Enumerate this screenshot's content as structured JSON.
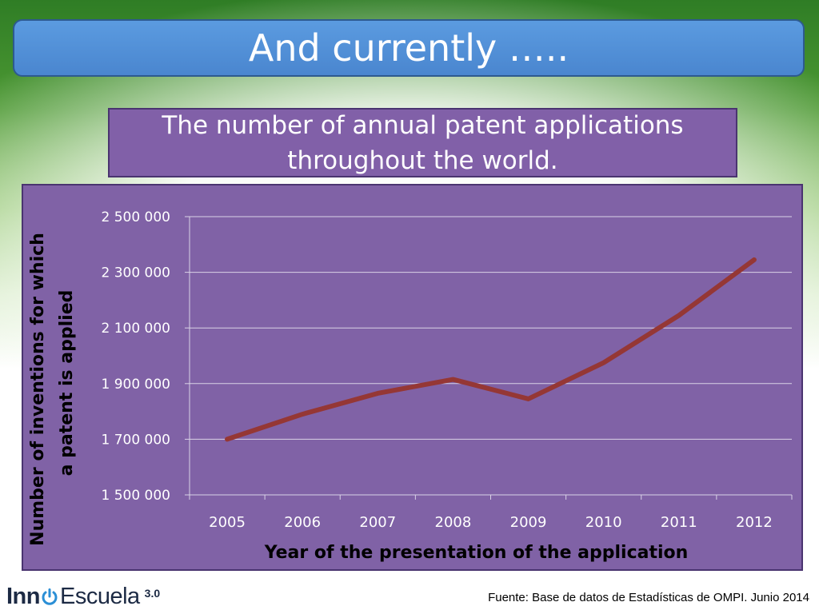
{
  "slide": {
    "title": "And currently …..",
    "subtitle_line1": "The number of annual patent applications",
    "subtitle_line2": "throughout the world.",
    "source": "Fuente: Base de datos de Estadísticas de OMPI. Junio 2014"
  },
  "logo": {
    "text_bold": "Inn",
    "text_regular": "Escuela",
    "version": "3.0"
  },
  "colors": {
    "title_bg": "#4a86cf",
    "panel_bg": "#8062a6",
    "line": "#953735"
  },
  "chart_data": {
    "type": "line",
    "title": "The number of annual patent applications throughout the world.",
    "xlabel": "Year of the presentation of the application",
    "ylabel_line1": "Number of inventions for which",
    "ylabel_line2": "a patent is applied",
    "categories": [
      "2005",
      "2006",
      "2007",
      "2008",
      "2009",
      "2010",
      "2011",
      "2012"
    ],
    "series": [
      {
        "name": "Patent applications",
        "values": [
          1700000,
          1790000,
          1865000,
          1915000,
          1845000,
          1975000,
          2145000,
          2345000
        ]
      }
    ],
    "ylim": [
      1500000,
      2500000
    ],
    "yticks": [
      1500000,
      1700000,
      1900000,
      2100000,
      2300000,
      2500000
    ],
    "ytick_labels": [
      "1 500 000",
      "1 700 000",
      "1 900 000",
      "2 100 000",
      "2 300 000",
      "2 500 000"
    ],
    "grid": true
  }
}
